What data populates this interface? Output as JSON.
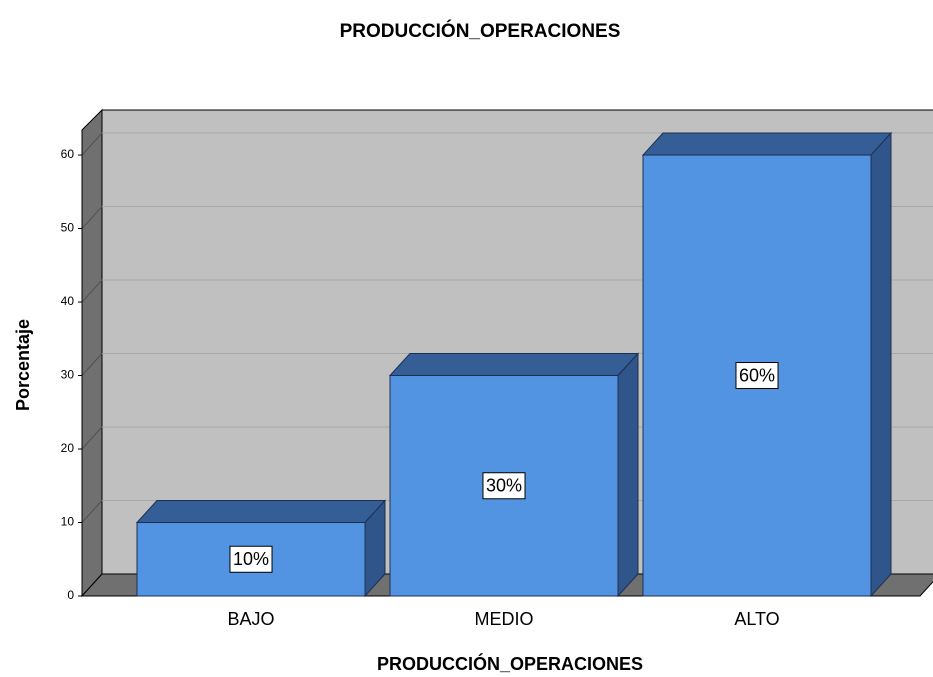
{
  "chart_data": {
    "type": "bar3d",
    "title": "PRODUCCIÓN_OPERACIONES",
    "x_label": "PRODUCCIÓN_OPERACIONES",
    "y_label": "Porcentaje",
    "categories": [
      "BAJO",
      "MEDIO",
      "ALTO"
    ],
    "values": [
      10,
      30,
      60
    ],
    "value_labels": [
      "10%",
      "30%",
      "60%"
    ],
    "color": "#5294e2",
    "ylim": [
      0,
      63
    ],
    "yticks": [
      0,
      10,
      20,
      30,
      40,
      50,
      60
    ],
    "grid": true
  }
}
